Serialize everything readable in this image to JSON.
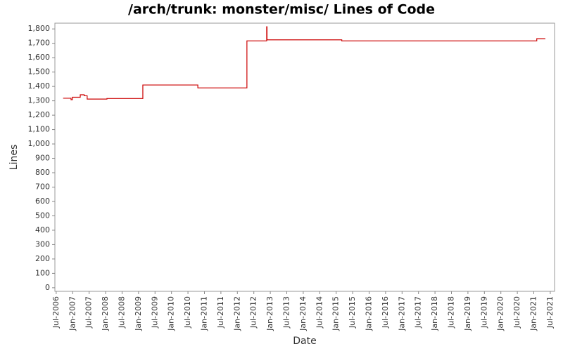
{
  "chart_data": {
    "type": "line",
    "title": "/arch/trunk: monster/misc/ Lines of Code",
    "x_label": "Date",
    "y_label": "Lines",
    "x": [
      2006.71,
      2006.95,
      2006.95,
      2006.99,
      2006.99,
      2007.23,
      2007.23,
      2007.35,
      2007.35,
      2007.44,
      2007.44,
      2008.04,
      2008.04,
      2009.13,
      2009.13,
      2010.8,
      2010.8,
      2012.29,
      2012.29,
      2012.89,
      2012.89,
      2012.9,
      2012.9,
      2015.17,
      2015.17,
      2021.09,
      2021.09,
      2021.35
    ],
    "series": [
      {
        "color": "#cc0000",
        "values": [
          1318,
          1318,
          1308,
          1308,
          1325,
          1325,
          1342,
          1342,
          1335,
          1335,
          1312,
          1312,
          1316,
          1316,
          1410,
          1410,
          1390,
          1390,
          1717,
          1717,
          1815,
          1815,
          1724,
          1724,
          1717,
          1717,
          1732,
          1732
        ]
      }
    ],
    "xlim": [
      2006.46,
      2021.63
    ],
    "ylim": [
      -25,
      1840
    ],
    "grid": false,
    "xticks": [
      {
        "value": 2006.5,
        "label": "Jul-2006"
      },
      {
        "value": 2007.0,
        "label": "Jan-2007"
      },
      {
        "value": 2007.5,
        "label": "Jul-2007"
      },
      {
        "value": 2008.0,
        "label": "Jan-2008"
      },
      {
        "value": 2008.5,
        "label": "Jul-2008"
      },
      {
        "value": 2009.0,
        "label": "Jan-2009"
      },
      {
        "value": 2009.5,
        "label": "Jul-2009"
      },
      {
        "value": 2010.0,
        "label": "Jan-2010"
      },
      {
        "value": 2010.5,
        "label": "Jul-2010"
      },
      {
        "value": 2011.0,
        "label": "Jan-2011"
      },
      {
        "value": 2011.5,
        "label": "Jul-2011"
      },
      {
        "value": 2012.0,
        "label": "Jan-2012"
      },
      {
        "value": 2012.5,
        "label": "Jul-2012"
      },
      {
        "value": 2013.0,
        "label": "Jan-2013"
      },
      {
        "value": 2013.5,
        "label": "Jul-2013"
      },
      {
        "value": 2014.0,
        "label": "Jan-2014"
      },
      {
        "value": 2014.5,
        "label": "Jul-2014"
      },
      {
        "value": 2015.0,
        "label": "Jan-2015"
      },
      {
        "value": 2015.5,
        "label": "Jul-2015"
      },
      {
        "value": 2016.0,
        "label": "Jan-2016"
      },
      {
        "value": 2016.5,
        "label": "Jul-2016"
      },
      {
        "value": 2017.0,
        "label": "Jan-2017"
      },
      {
        "value": 2017.5,
        "label": "Jul-2017"
      },
      {
        "value": 2018.0,
        "label": "Jan-2018"
      },
      {
        "value": 2018.5,
        "label": "Jul-2018"
      },
      {
        "value": 2019.0,
        "label": "Jan-2019"
      },
      {
        "value": 2019.5,
        "label": "Jul-2019"
      },
      {
        "value": 2020.0,
        "label": "Jan-2020"
      },
      {
        "value": 2020.5,
        "label": "Jul-2020"
      },
      {
        "value": 2021.0,
        "label": "Jan-2021"
      },
      {
        "value": 2021.5,
        "label": "Jul-2021"
      }
    ],
    "yticks": [
      0,
      100,
      200,
      300,
      400,
      500,
      600,
      700,
      800,
      900,
      {
        "value": 1000,
        "label": "1,000"
      },
      {
        "value": 1100,
        "label": "1,100"
      },
      {
        "value": 1200,
        "label": "1,200"
      },
      {
        "value": 1300,
        "label": "1,300"
      },
      {
        "value": 1400,
        "label": "1,400"
      },
      {
        "value": 1500,
        "label": "1,500"
      },
      {
        "value": 1600,
        "label": "1,600"
      },
      {
        "value": 1700,
        "label": "1,700"
      },
      {
        "value": 1800,
        "label": "1,800"
      }
    ]
  }
}
